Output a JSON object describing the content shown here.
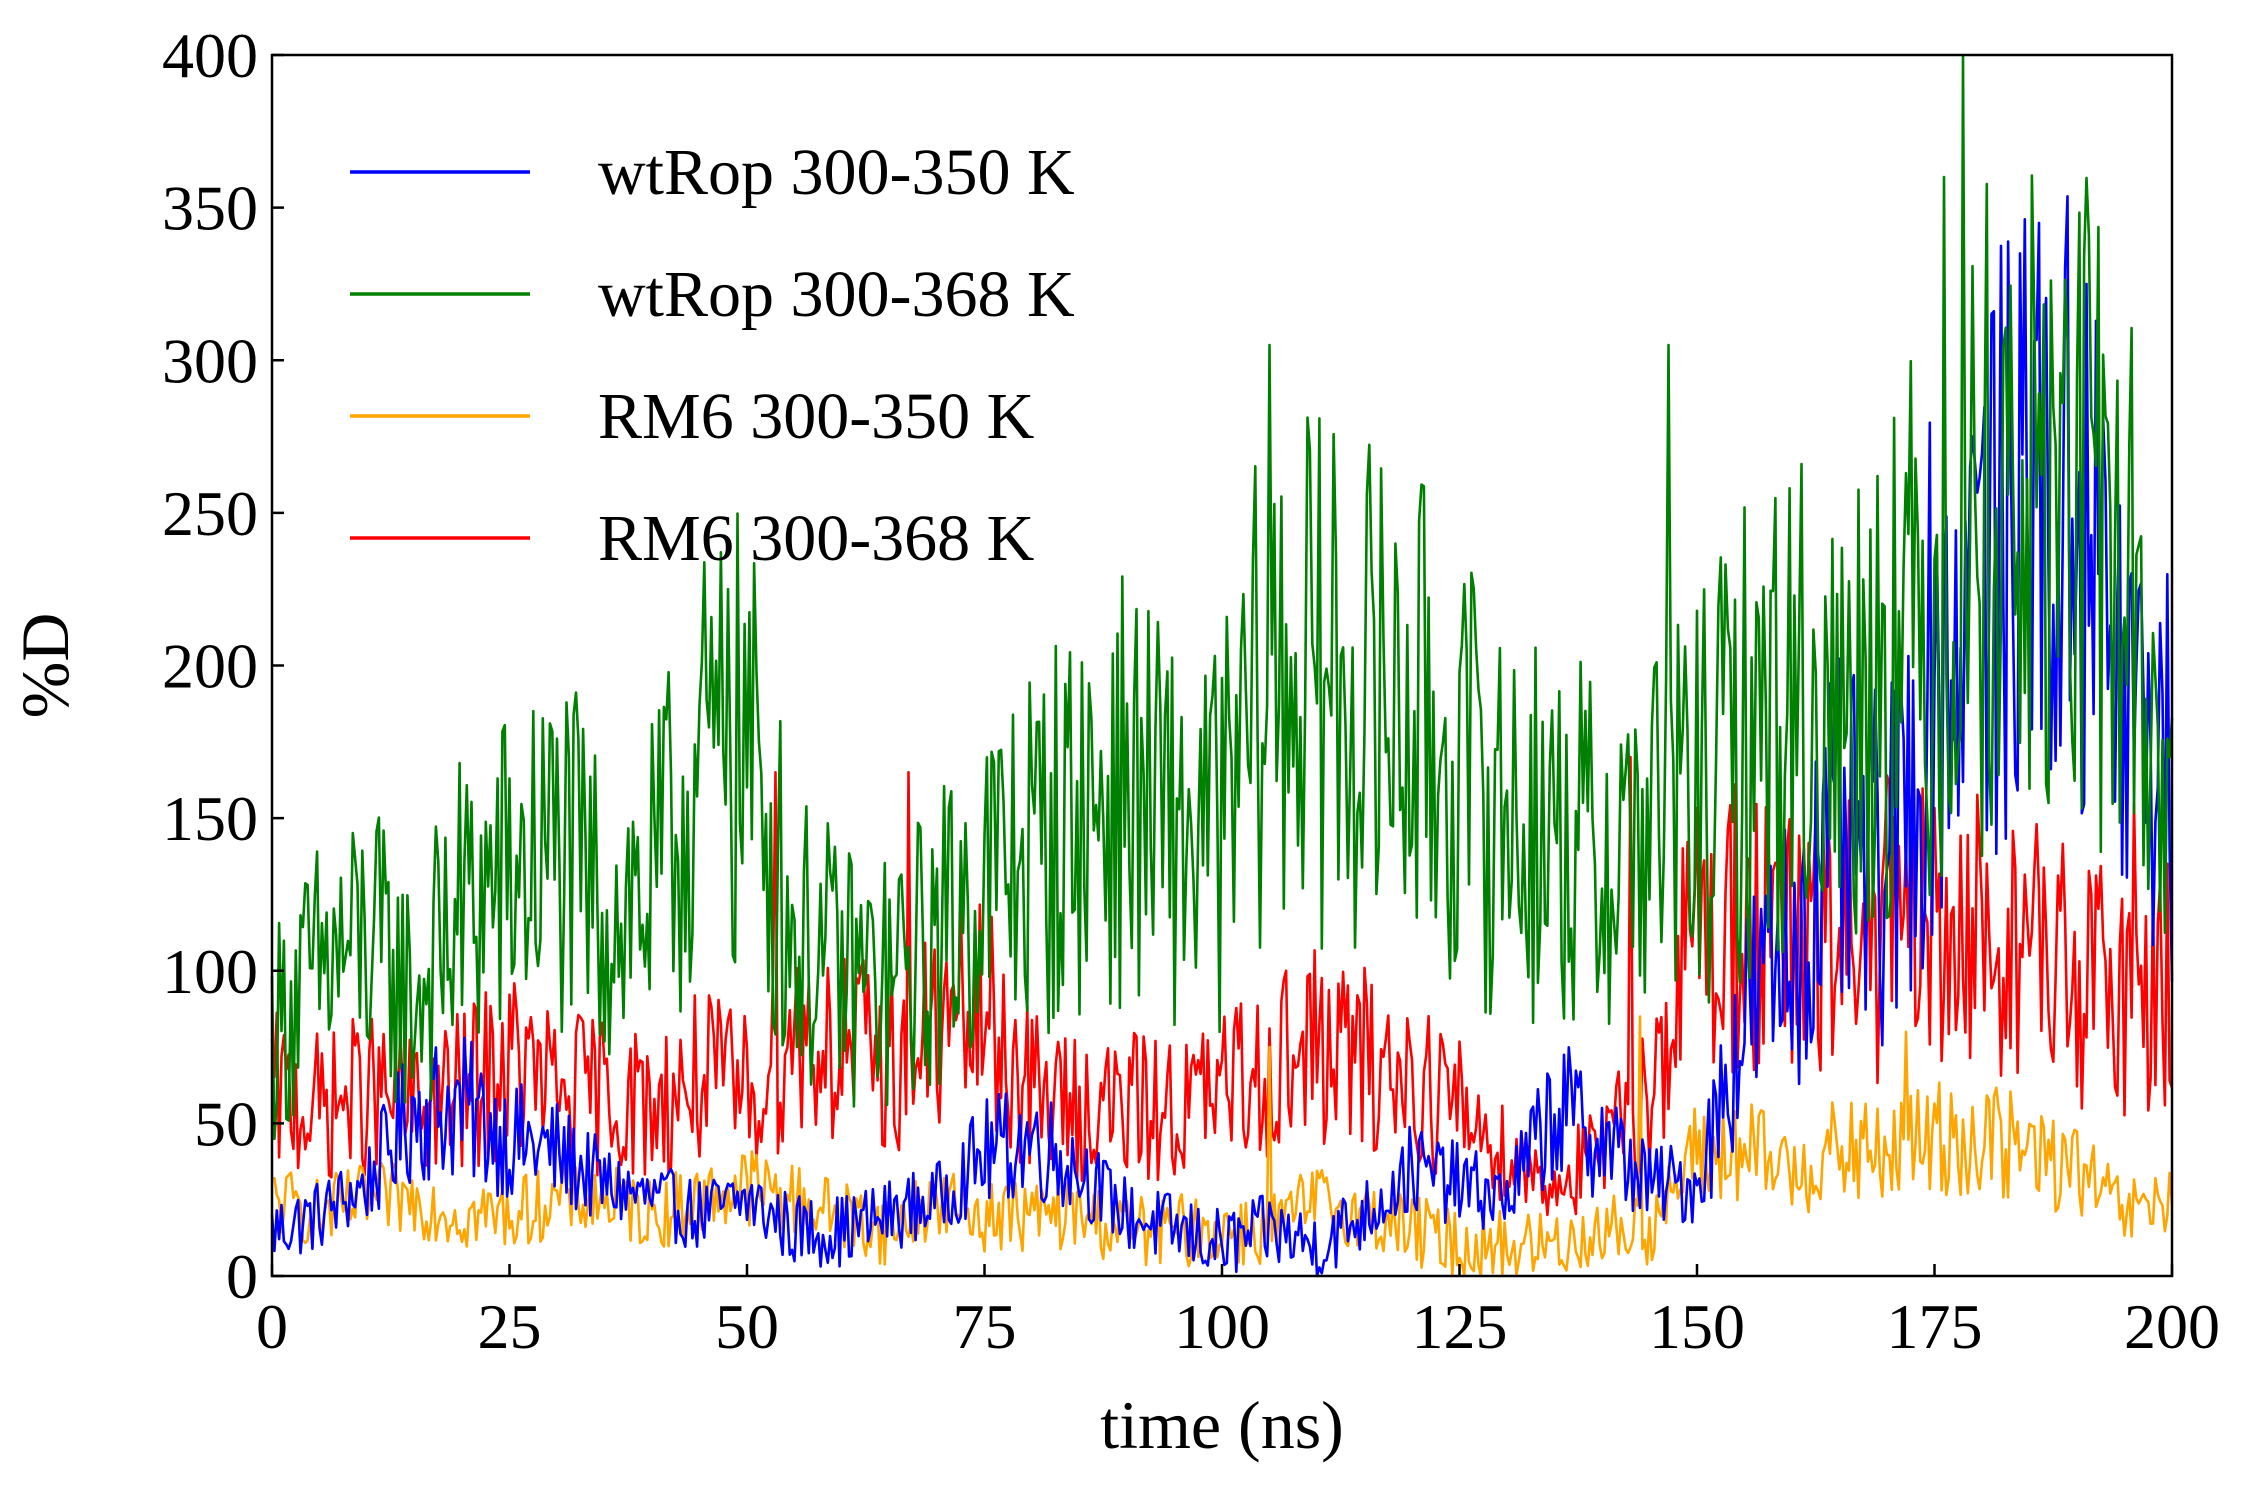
{
  "chart_data": {
    "type": "line",
    "title": "",
    "xlabel": "time (ns)",
    "ylabel": "%D",
    "xlim": [
      0,
      200
    ],
    "ylim": [
      0,
      400
    ],
    "xticks": [
      0,
      25,
      50,
      75,
      100,
      125,
      150,
      175,
      200
    ],
    "yticks": [
      0,
      50,
      100,
      150,
      200,
      250,
      300,
      350,
      400
    ],
    "xtick_labels": [
      "0",
      "25",
      "50",
      "75",
      "100",
      "125",
      "150",
      "175",
      "200"
    ],
    "ytick_labels": [
      "0",
      "50",
      "100",
      "150",
      "200",
      "250",
      "300",
      "350",
      "400"
    ],
    "grid": false,
    "legend_position": "top-left",
    "sample_step_ns": 0.25,
    "series": [
      {
        "name": "wtRop 300-350 K",
        "color": "#0000ff",
        "x_range": [
          0,
          200
        ],
        "approx_values_every_5ns": [
          15,
          20,
          30,
          55,
          55,
          45,
          40,
          30,
          25,
          20,
          25,
          15,
          15,
          20,
          25,
          40,
          45,
          35,
          20,
          15,
          10,
          15,
          10,
          20,
          35,
          30,
          25,
          55,
          45,
          30,
          30,
          85,
          110,
          140,
          130,
          200,
          230,
          240,
          250,
          190,
          160
        ],
        "peak_values": [
          {
            "x": 186,
            "y": 345
          },
          {
            "x": 184,
            "y": 335
          },
          {
            "x": 191,
            "y": 325
          },
          {
            "x": 179,
            "y": 275
          }
        ]
      },
      {
        "name": "wtRop 300-368 K",
        "color": "#008000",
        "x_range": [
          0,
          200
        ],
        "approx_values_every_5ns": [
          80,
          100,
          110,
          90,
          120,
          130,
          140,
          120,
          125,
          165,
          175,
          110,
          100,
          95,
          110,
          130,
          140,
          150,
          160,
          145,
          145,
          200,
          195,
          190,
          185,
          165,
          150,
          145,
          135,
          150,
          155,
          175,
          190,
          180,
          210,
          210,
          250,
          250,
          255,
          230,
          150
        ],
        "peak_values": [
          {
            "x": 178,
            "y": 400
          },
          {
            "x": 176,
            "y": 360
          },
          {
            "x": 105,
            "y": 305
          },
          {
            "x": 147,
            "y": 305
          },
          {
            "x": 48,
            "y": 225
          }
        ]
      },
      {
        "name": "RM6 300-350 K",
        "color": "#ffa500",
        "x_range": [
          0,
          200
        ],
        "approx_values_every_5ns": [
          25,
          20,
          25,
          25,
          20,
          20,
          25,
          25,
          20,
          25,
          30,
          25,
          20,
          15,
          25,
          20,
          20,
          20,
          15,
          15,
          15,
          15,
          25,
          20,
          15,
          10,
          10,
          10,
          15,
          15,
          40,
          40,
          35,
          40,
          40,
          45,
          45,
          40,
          35,
          20,
          25
        ],
        "peak_values": [
          {
            "x": 144,
            "y": 85
          },
          {
            "x": 172,
            "y": 80
          },
          {
            "x": 105,
            "y": 75
          }
        ]
      },
      {
        "name": "RM6 300-368 K",
        "color": "#ff0000",
        "x_range": [
          0,
          200
        ],
        "approx_values_every_5ns": [
          60,
          55,
          60,
          55,
          60,
          70,
          60,
          60,
          55,
          65,
          60,
          80,
          75,
          70,
          80,
          85,
          60,
          55,
          55,
          55,
          60,
          70,
          75,
          70,
          65,
          55,
          40,
          30,
          40,
          60,
          115,
          115,
          105,
          110,
          115,
          110,
          110,
          110,
          95,
          95,
          95
        ],
        "peak_values": [
          {
            "x": 53,
            "y": 165
          },
          {
            "x": 67,
            "y": 165
          },
          {
            "x": 143,
            "y": 170
          },
          {
            "x": 196,
            "y": 155
          }
        ]
      }
    ]
  }
}
